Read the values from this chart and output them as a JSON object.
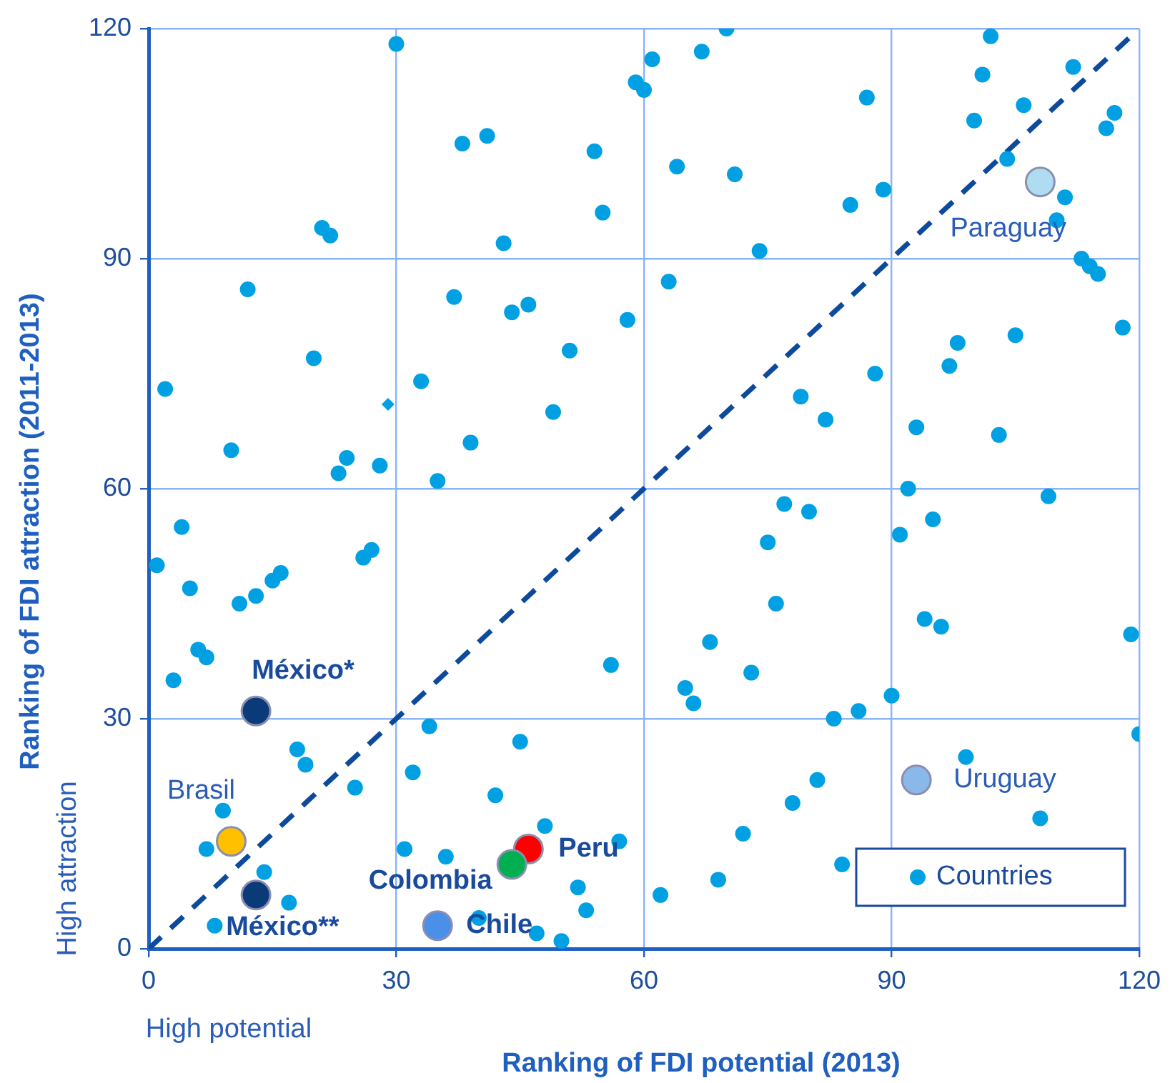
{
  "chart_data": {
    "type": "scatter",
    "xlabel": "Ranking of FDI potential (2013)",
    "ylabel": "Ranking of FDI attraction (2011-2013)",
    "annotations": [
      "High attraction",
      "High potential"
    ],
    "xlim": [
      0,
      120
    ],
    "ylim": [
      0,
      120
    ],
    "xticks": [
      0,
      30,
      60,
      90,
      120
    ],
    "yticks": [
      0,
      30,
      60,
      90,
      120
    ],
    "grid": true,
    "legend": "bottom right",
    "marker": "circle",
    "series": [
      {
        "name": "Countries",
        "color": "#00a0e3",
        "x": [
          30,
          21,
          22,
          20,
          12,
          38,
          41,
          43,
          37,
          44,
          46,
          51,
          58,
          39,
          49,
          33,
          2,
          10,
          23,
          24,
          28,
          35,
          55,
          54,
          59,
          60,
          61,
          67,
          70,
          64,
          71,
          63,
          74,
          87,
          85,
          89,
          102,
          101,
          100,
          104,
          106,
          112,
          116,
          117,
          111,
          110,
          113,
          114,
          115,
          118,
          105,
          97,
          98,
          88,
          79,
          82,
          93,
          103,
          92,
          109,
          77,
          80,
          75,
          91,
          95,
          76,
          68,
          94,
          96,
          119,
          73,
          65,
          66,
          90,
          86,
          83,
          120,
          99,
          81,
          78,
          108,
          72,
          84,
          69,
          62,
          4,
          1,
          5,
          11,
          13,
          15,
          16,
          6,
          7,
          3,
          26,
          27,
          34,
          45,
          56,
          18,
          19,
          32,
          25,
          42,
          9,
          48,
          7,
          31,
          36,
          57,
          14,
          17,
          52,
          53,
          8,
          40,
          47,
          50
        ],
        "values": [
          118,
          94,
          93,
          77,
          86,
          105,
          106,
          92,
          85,
          83,
          84,
          78,
          82,
          66,
          70,
          74,
          73,
          65,
          62,
          64,
          63,
          61,
          96,
          104,
          113,
          112,
          116,
          117,
          120,
          102,
          101,
          87,
          91,
          111,
          97,
          99,
          119,
          114,
          108,
          103,
          110,
          115,
          107,
          109,
          98,
          95,
          90,
          89,
          88,
          81,
          80,
          76,
          79,
          75,
          72,
          69,
          68,
          67,
          60,
          59,
          58,
          57,
          53,
          54,
          56,
          45,
          40,
          43,
          42,
          41,
          36,
          34,
          32,
          33,
          31,
          30,
          28,
          25,
          22,
          19,
          17,
          15,
          11,
          9,
          7,
          55,
          50,
          47,
          45,
          46,
          48,
          49,
          39,
          38,
          35,
          51,
          52,
          29,
          27,
          37,
          26,
          24,
          23,
          21,
          20,
          18,
          16,
          13,
          13,
          12,
          14,
          10,
          6,
          8,
          5,
          3,
          4,
          2,
          1
        ]
      },
      {
        "color": "#00a0e3",
        "marker": "diamond",
        "x": [
          29
        ],
        "values": [
          71
        ]
      },
      {
        "type": "line",
        "color": "#0d4a9c",
        "line_style": "dashed",
        "marker": "none",
        "x": [
          0,
          119
        ],
        "values": [
          0,
          119
        ]
      },
      {
        "name": "México*",
        "color": "#0a3a78",
        "x": [
          13
        ],
        "values": [
          31
        ]
      },
      {
        "name": "Brasil",
        "color": "#ffc000",
        "x": [
          10
        ],
        "values": [
          14
        ]
      },
      {
        "name": "México**",
        "color": "#0a3a78",
        "x": [
          13
        ],
        "values": [
          7
        ]
      },
      {
        "name": "Colombia",
        "color": "#00b050",
        "x": [
          44
        ],
        "values": [
          11
        ]
      },
      {
        "name": "Peru",
        "color": "#ff0000",
        "x": [
          46
        ],
        "values": [
          13
        ]
      },
      {
        "name": "Chile",
        "color": "#4a90e8",
        "x": [
          35
        ],
        "values": [
          3
        ]
      },
      {
        "name": "Uruguay",
        "color": "#8ab8e8",
        "x": [
          93
        ],
        "values": [
          22
        ]
      },
      {
        "name": "Paraguay",
        "color": "#b0dcf2",
        "x": [
          108
        ],
        "values": [
          100
        ]
      }
    ]
  }
}
